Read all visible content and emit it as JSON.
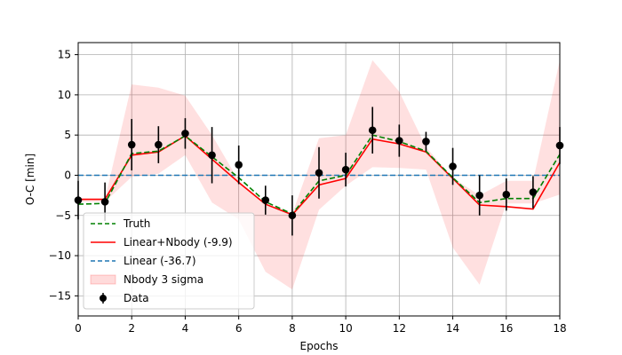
{
  "chart_data": {
    "type": "line",
    "title": "",
    "xlabel": "Epochs",
    "ylabel": "O-C [min]",
    "xlim": [
      0,
      18
    ],
    "ylim": [
      -17.5,
      16.5
    ],
    "xticks": [
      0,
      2,
      4,
      6,
      8,
      10,
      12,
      14,
      16,
      18
    ],
    "yticks": [
      -15,
      -10,
      -5,
      0,
      5,
      10,
      15
    ],
    "grid": true,
    "legend_position": "lower-left",
    "legend": [
      "Truth",
      "Linear+Nbody (-9.9)",
      "Linear (-36.7)",
      "Nbody 3 sigma",
      "Data"
    ],
    "x": [
      0,
      1,
      2,
      3,
      4,
      5,
      6,
      7,
      8,
      9,
      10,
      11,
      12,
      13,
      14,
      15,
      16,
      17,
      18
    ],
    "series": [
      {
        "name": "Truth",
        "style": "dashed",
        "color": "#008000",
        "values": [
          -3.6,
          -3.5,
          2.7,
          3.0,
          4.9,
          2.3,
          -0.3,
          -3.3,
          -4.8,
          -0.7,
          0.0,
          5.0,
          4.2,
          3.0,
          -0.3,
          -3.4,
          -2.9,
          -2.9,
          2.6
        ]
      },
      {
        "name": "Linear+Nbody (-9.9)",
        "style": "solid",
        "color": "#ff0000",
        "values": [
          -3.0,
          -3.0,
          2.5,
          2.9,
          4.9,
          2.0,
          -0.9,
          -3.6,
          -4.9,
          -1.2,
          -0.4,
          4.5,
          3.9,
          2.9,
          -0.4,
          -3.7,
          -3.9,
          -4.2,
          1.6
        ]
      },
      {
        "name": "Linear (-36.7)",
        "style": "dashed",
        "color": "#1f77b4",
        "values": [
          0.0,
          0.0,
          0.0,
          0.0,
          0.0,
          0.0,
          0.0,
          0.0,
          0.0,
          0.0,
          0.0,
          0.0,
          0.0,
          0.0,
          0.0,
          0.0,
          0.0,
          0.0,
          0.0
        ]
      }
    ],
    "band": {
      "name": "Nbody 3 sigma",
      "color": "#ff0000",
      "upper": [
        -3.0,
        -3.0,
        11.3,
        10.9,
        9.9,
        5.0,
        -0.7,
        -3.5,
        -4.8,
        4.6,
        5.0,
        14.3,
        10.4,
        3.5,
        -0.3,
        -2.5,
        -0.7,
        -0.7,
        14.3
      ],
      "lower": [
        -3.3,
        -3.3,
        -0.2,
        0.2,
        2.5,
        -3.4,
        -5.5,
        -12.0,
        -14.2,
        -4.3,
        -1.3,
        1.0,
        0.9,
        0.7,
        -9.0,
        -13.6,
        -3.5,
        -3.5,
        -2.4
      ]
    },
    "data_points": {
      "name": "Data",
      "color": "#000000",
      "y": [
        -3.1,
        -3.3,
        3.8,
        3.8,
        5.2,
        2.5,
        1.3,
        -3.1,
        -5.0,
        0.3,
        0.7,
        5.6,
        4.3,
        4.2,
        1.1,
        -2.5,
        -2.4,
        -2.1,
        3.7
      ],
      "err": [
        2.4,
        2.4,
        3.2,
        2.3,
        1.9,
        3.5,
        2.4,
        1.8,
        2.5,
        3.2,
        2.1,
        2.9,
        2.0,
        1.2,
        2.3,
        2.5,
        2.0,
        2.0,
        2.3
      ]
    }
  }
}
